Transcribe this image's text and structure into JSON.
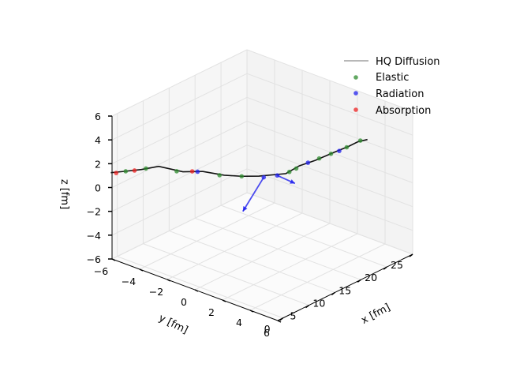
{
  "chart_data": {
    "type": "scatter",
    "projection": "3d",
    "xlabel": "x [fm]",
    "ylabel": "y [fm]",
    "zlabel": "z [fm]",
    "xlim": [
      -1,
      25
    ],
    "ylim": [
      -6,
      6
    ],
    "zlim": [
      -6,
      6
    ],
    "xticks": [
      "0",
      "5",
      "10",
      "15",
      "20",
      "25"
    ],
    "yticks": [
      "−6",
      "−4",
      "−2",
      "0",
      "2",
      "4",
      "6"
    ],
    "zticks": [
      "−6",
      "−4",
      "−2",
      "0",
      "2",
      "4",
      "6"
    ],
    "grid": true,
    "legend_position": "top-right",
    "legend": [
      {
        "label": "HQ Diffusion",
        "kind": "line",
        "color": "#a0a0a0"
      },
      {
        "label": "Elastic",
        "kind": "dot",
        "color": "#2e8b2e"
      },
      {
        "label": "Radiation",
        "kind": "dot",
        "color": "#2020ee"
      },
      {
        "label": "Absorption",
        "kind": "dot",
        "color": "#ee2020"
      }
    ],
    "trajectory": [
      [
        -1.5,
        -5.9,
        1.4
      ],
      [
        0,
        -5.6,
        1.3
      ],
      [
        2,
        -5.0,
        1.3
      ],
      [
        4,
        -4.5,
        1.35
      ],
      [
        6,
        -3.5,
        0.9
      ],
      [
        8,
        -2.8,
        0.8
      ],
      [
        10,
        -2.0,
        0.4
      ],
      [
        12,
        -1.5,
        0.1
      ],
      [
        14,
        -1.0,
        -0.1
      ],
      [
        16,
        0.2,
        0.2
      ],
      [
        17.5,
        0.6,
        0.7
      ],
      [
        19,
        1.2,
        1.1
      ],
      [
        21,
        1.8,
        1.6
      ],
      [
        22.5,
        2.3,
        2.0
      ],
      [
        23.5,
        2.6,
        2.3
      ],
      [
        24,
        3.1,
        2.6
      ]
    ],
    "series": [
      {
        "name": "Elastic",
        "color": "#2e8b2e",
        "points": [
          [
            0.3,
            -5.5,
            1.3
          ],
          [
            2.6,
            -4.9,
            1.3
          ],
          [
            5.6,
            -3.8,
            0.9
          ],
          [
            9.6,
            -2.2,
            0.4
          ],
          [
            12,
            -1.5,
            0.1
          ],
          [
            16.4,
            0.3,
            0.3
          ],
          [
            17.2,
            0.5,
            0.5
          ],
          [
            19.5,
            1.3,
            1.2
          ],
          [
            20.7,
            1.7,
            1.5
          ],
          [
            22.4,
            2.2,
            1.9
          ],
          [
            23.7,
            2.7,
            2.4
          ]
        ]
      },
      {
        "name": "Radiation",
        "color": "#2020ee",
        "points": [
          [
            7.5,
            -3.0,
            0.8
          ],
          [
            14.4,
            -0.8,
            -0.2
          ],
          [
            15.4,
            -0.2,
            0.0
          ],
          [
            18.4,
            0.9,
            0.9
          ],
          [
            21.5,
            2.0,
            1.7
          ]
        ]
      },
      {
        "name": "Absorption",
        "color": "#ee2020",
        "points": [
          [
            -1,
            -5.7,
            1.35
          ],
          [
            1.2,
            -5.2,
            1.3
          ],
          [
            7,
            -3.2,
            0.85
          ]
        ]
      }
    ],
    "radiated_quanta": [
      {
        "color": "#2020ee",
        "from": [
          14.4,
          -0.8,
          -0.2
        ],
        "to": [
          12.5,
          -1.6,
          -3.0
        ]
      },
      {
        "color": "#2020ee",
        "from": [
          15.4,
          -0.2,
          0.0
        ],
        "to": [
          13.5,
          1.8,
          0.6
        ]
      }
    ]
  }
}
